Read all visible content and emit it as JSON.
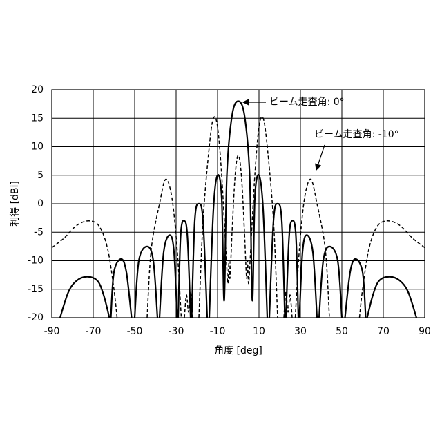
{
  "chart_data": {
    "type": "line",
    "xlabel": "角度 [deg]",
    "ylabel": "利得 [dBi]",
    "xlim": [
      -90,
      90
    ],
    "xticks": [
      -90,
      -70,
      -50,
      -30,
      -10,
      10,
      30,
      50,
      70,
      90
    ],
    "ylim": [
      -20,
      20
    ],
    "yticks": [
      -20,
      -15,
      -10,
      -5,
      0,
      5,
      10,
      15,
      20
    ],
    "grid": true,
    "series": [
      {
        "name": "ビーム走査角: 0°",
        "color": "#000000",
        "line_style": "solid",
        "x": [
          -86,
          -82,
          -78,
          -73,
          -68,
          -65,
          -62.2,
          -61.8,
          -61.5,
          -60,
          -56.5,
          -54,
          -51.5,
          -51,
          -50,
          -48,
          -44,
          -41,
          -39,
          -38.5,
          -38,
          -36,
          -33,
          -31,
          -29.5,
          -29.2,
          -29,
          -27.8,
          -26,
          -24.5,
          -23,
          -22.8,
          -22.5,
          -21,
          -19,
          -17,
          -15,
          -14.5,
          -14,
          -12,
          -10,
          -8,
          -6.8,
          -5.5,
          -3,
          0,
          3,
          5.5,
          6.8,
          8,
          10,
          12,
          14,
          14.5,
          15,
          17,
          19,
          21,
          22.5,
          22.8,
          23,
          24.5,
          26,
          27.8,
          29,
          29.2,
          29.5,
          31,
          33,
          36,
          38,
          38.5,
          39,
          41,
          44,
          48,
          50,
          51,
          51.5,
          54,
          56.5,
          60,
          61.5,
          61.8,
          62.2,
          65,
          68,
          73,
          78,
          82,
          86
        ],
        "values": [
          -20,
          -15.5,
          -13.5,
          -12.8,
          -13.5,
          -16,
          -20,
          null,
          -20,
          -12,
          -9.7,
          -12,
          -20,
          null,
          -20,
          -10,
          -7.5,
          -10,
          -20,
          null,
          -20,
          -8.5,
          -5.5,
          -8.5,
          -20,
          null,
          -20,
          -5.5,
          -3,
          -6,
          -20,
          null,
          -20,
          -3,
          0,
          -3,
          -20,
          null,
          -20,
          -1,
          5,
          1,
          -17,
          5,
          15.5,
          18,
          15.5,
          5,
          -17,
          1,
          5,
          -1,
          -20,
          null,
          -20,
          -3,
          0,
          -3,
          -20,
          null,
          -20,
          -6,
          -3,
          -5.5,
          -20,
          null,
          -20,
          -8.5,
          -5.5,
          -8.5,
          -20,
          null,
          -20,
          -10,
          -7.5,
          -10,
          -20,
          null,
          -20,
          -12,
          -9.7,
          -12,
          -20,
          null,
          -20,
          -16,
          -13.5,
          -12.8,
          -13.5,
          -15.5,
          -20
        ]
      },
      {
        "name": "ビーム走査角: -10°",
        "color": "#000000",
        "line_style": "dashed",
        "x": [
          -90,
          -84,
          -78,
          -72,
          -67,
          -63,
          -60,
          -58.5,
          -58,
          -44,
          -42,
          -38,
          -35,
          -32,
          -29.5,
          -27.5,
          -27,
          -26,
          -25,
          -24,
          -23,
          -22,
          -21,
          -19,
          -17,
          -14,
          -12,
          -10,
          -8,
          -6,
          -5,
          -4.5,
          -4,
          -3,
          -1.5,
          0,
          1.5,
          3,
          4,
          4.5,
          5,
          6,
          8,
          10,
          12,
          14,
          17,
          19,
          21,
          22,
          23,
          24,
          25,
          26,
          27,
          27.5,
          29.5,
          32,
          35,
          38,
          42,
          44,
          58,
          58.5,
          60,
          63,
          67,
          72,
          78,
          84,
          90
        ],
        "values": [
          -7.7,
          -6,
          -3.8,
          -3,
          -4,
          -8,
          -15,
          -20,
          null,
          -20,
          -8,
          0,
          4.3,
          1,
          -8,
          -20,
          null,
          -20,
          -16,
          -19,
          -15.5,
          -20,
          null,
          -20,
          -3,
          10,
          15,
          13.5,
          5,
          -8,
          -14,
          -10,
          -13,
          -5,
          5,
          8.5,
          5,
          -5,
          -13,
          -10,
          -14,
          -8,
          5,
          13.5,
          15,
          10,
          -3,
          -20,
          null,
          -20,
          -15.5,
          -19,
          -16,
          -20,
          null,
          -20,
          -8,
          1,
          4.3,
          0,
          -8,
          -20,
          null,
          -20,
          -15,
          -8,
          -4,
          -3,
          -3.8,
          -6,
          -7.7
        ]
      }
    ]
  }
}
